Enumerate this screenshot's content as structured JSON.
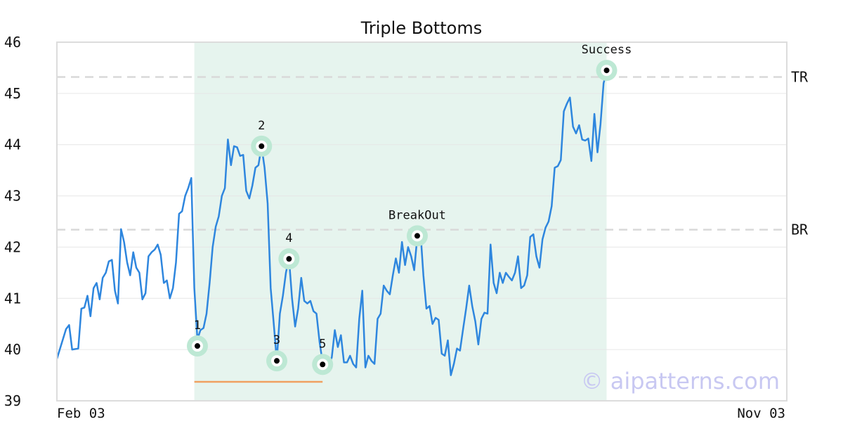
{
  "chart_data": {
    "type": "line",
    "title": "Triple Bottoms",
    "xlabel": "",
    "ylabel": "",
    "ylim": [
      39,
      46
    ],
    "yticks": [
      39,
      40,
      41,
      42,
      43,
      44,
      45,
      46
    ],
    "xtick_labels": [
      "Feb 03",
      "Nov 03"
    ],
    "grid": "horizontal",
    "n_points": 240,
    "series": [
      {
        "name": "",
        "color": "#2e86de",
        "keypoints": [
          [
            0,
            39.82
          ],
          [
            3,
            40.4
          ],
          [
            4,
            40.48
          ],
          [
            5,
            40
          ],
          [
            7,
            40.02
          ],
          [
            8,
            40.8
          ],
          [
            9,
            40.82
          ],
          [
            10,
            41.05
          ],
          [
            11,
            40.65
          ],
          [
            12,
            41.2
          ],
          [
            13,
            41.3
          ],
          [
            14,
            40.98
          ],
          [
            15,
            41.4
          ],
          [
            16,
            41.5
          ],
          [
            17,
            41.72
          ],
          [
            18,
            41.75
          ],
          [
            19,
            41.15
          ],
          [
            20,
            40.9
          ],
          [
            21,
            42.35
          ],
          [
            22,
            42.1
          ],
          [
            23,
            41.7
          ],
          [
            24,
            41.45
          ],
          [
            25,
            41.9
          ],
          [
            26,
            41.6
          ],
          [
            27,
            41.5
          ],
          [
            28,
            40.98
          ],
          [
            29,
            41.1
          ],
          [
            30,
            41.82
          ],
          [
            31,
            41.9
          ],
          [
            32,
            41.95
          ],
          [
            33,
            42.05
          ],
          [
            34,
            41.85
          ],
          [
            35,
            41.3
          ],
          [
            36,
            41.35
          ],
          [
            37,
            41
          ],
          [
            38,
            41.2
          ],
          [
            39,
            41.7
          ],
          [
            40,
            42.65
          ],
          [
            41,
            42.7
          ],
          [
            42,
            43
          ],
          [
            43,
            43.15
          ],
          [
            44,
            43.35
          ],
          [
            45,
            41.2
          ],
          [
            46,
            40.2
          ],
          [
            47,
            40.38
          ],
          [
            48,
            40.42
          ],
          [
            49,
            40.7
          ],
          [
            50,
            41.3
          ],
          [
            51,
            42
          ],
          [
            52,
            42.4
          ],
          [
            53,
            42.6
          ],
          [
            54,
            43
          ],
          [
            55,
            43.15
          ],
          [
            56,
            44.1
          ],
          [
            57,
            43.6
          ],
          [
            58,
            43.97
          ],
          [
            59,
            43.95
          ],
          [
            60,
            43.78
          ],
          [
            61,
            43.8
          ],
          [
            62,
            43.1
          ],
          [
            63,
            42.95
          ],
          [
            64,
            43.2
          ],
          [
            65,
            43.55
          ],
          [
            66,
            43.6
          ],
          [
            67,
            43.97
          ],
          [
            68,
            43.55
          ],
          [
            69,
            42.85
          ],
          [
            70,
            41.2
          ],
          [
            71,
            40.5
          ],
          [
            72,
            39.78
          ],
          [
            73,
            40.7
          ],
          [
            74,
            41.05
          ],
          [
            75,
            41.5
          ],
          [
            76,
            41.78
          ],
          [
            77,
            41
          ],
          [
            78,
            40.45
          ],
          [
            79,
            40.8
          ],
          [
            80,
            41.4
          ],
          [
            81,
            40.95
          ],
          [
            82,
            40.9
          ],
          [
            83,
            40.95
          ],
          [
            84,
            40.75
          ],
          [
            85,
            40.7
          ],
          [
            86,
            40.15
          ],
          [
            87,
            39.75
          ],
          [
            88,
            39.8
          ],
          [
            89,
            39.7
          ],
          [
            90,
            39.85
          ],
          [
            91,
            40.38
          ],
          [
            92,
            40.05
          ],
          [
            93,
            40.28
          ],
          [
            94,
            39.75
          ],
          [
            95,
            39.75
          ],
          [
            96,
            39.88
          ],
          [
            97,
            39.72
          ],
          [
            98,
            39.65
          ],
          [
            99,
            40.6
          ],
          [
            100,
            41.15
          ],
          [
            101,
            39.65
          ],
          [
            102,
            39.88
          ],
          [
            103,
            39.78
          ],
          [
            104,
            39.72
          ],
          [
            105,
            40.6
          ],
          [
            106,
            40.7
          ],
          [
            107,
            41.25
          ],
          [
            108,
            41.15
          ],
          [
            109,
            41.08
          ],
          [
            110,
            41.45
          ],
          [
            111,
            41.78
          ],
          [
            112,
            41.5
          ],
          [
            113,
            42.1
          ],
          [
            114,
            41.65
          ],
          [
            115,
            42
          ],
          [
            116,
            41.82
          ],
          [
            117,
            41.55
          ],
          [
            118,
            42.2
          ],
          [
            119,
            42.35
          ],
          [
            120,
            41.45
          ],
          [
            121,
            40.8
          ],
          [
            122,
            40.85
          ],
          [
            123,
            40.5
          ],
          [
            124,
            40.62
          ],
          [
            125,
            40.58
          ],
          [
            126,
            39.92
          ],
          [
            127,
            39.88
          ],
          [
            128,
            40.18
          ],
          [
            129,
            39.5
          ],
          [
            130,
            39.72
          ],
          [
            131,
            40.02
          ],
          [
            132,
            39.98
          ],
          [
            133,
            40.4
          ],
          [
            134,
            40.8
          ],
          [
            135,
            41.25
          ],
          [
            136,
            40.85
          ],
          [
            137,
            40.55
          ],
          [
            138,
            40.1
          ],
          [
            139,
            40.6
          ],
          [
            140,
            40.72
          ],
          [
            141,
            40.7
          ],
          [
            142,
            42.05
          ],
          [
            143,
            41.3
          ],
          [
            144,
            41.1
          ],
          [
            145,
            41.5
          ],
          [
            146,
            41.3
          ],
          [
            147,
            41.5
          ],
          [
            148,
            41.42
          ],
          [
            149,
            41.35
          ],
          [
            150,
            41.5
          ],
          [
            151,
            41.82
          ],
          [
            152,
            41.2
          ],
          [
            153,
            41.25
          ],
          [
            154,
            41.45
          ],
          [
            155,
            42.2
          ],
          [
            156,
            42.25
          ],
          [
            157,
            41.82
          ],
          [
            158,
            41.6
          ],
          [
            159,
            42.15
          ],
          [
            160,
            42.38
          ],
          [
            161,
            42.5
          ],
          [
            162,
            42.8
          ],
          [
            163,
            43.55
          ],
          [
            164,
            43.58
          ],
          [
            165,
            43.7
          ],
          [
            166,
            44.65
          ],
          [
            167,
            44.8
          ],
          [
            168,
            44.92
          ],
          [
            169,
            44.35
          ],
          [
            170,
            44.22
          ],
          [
            171,
            44.38
          ],
          [
            172,
            44.1
          ],
          [
            173,
            44.08
          ],
          [
            174,
            44.12
          ],
          [
            175,
            43.68
          ],
          [
            176,
            44.6
          ],
          [
            177,
            43.85
          ],
          [
            178,
            44.4
          ],
          [
            179,
            45.2
          ],
          [
            180,
            45.42
          ],
          [
            181,
            45.55
          ]
        ]
      }
    ],
    "highlight_range_x": [
      45,
      180
    ],
    "levels": [
      {
        "label": "TR",
        "y": 45.32
      },
      {
        "label": "BR",
        "y": 42.34
      }
    ],
    "annotations": [
      {
        "label": "1",
        "x": 46,
        "y": 40.07
      },
      {
        "label": "2",
        "x": 67,
        "y": 43.97
      },
      {
        "label": "3",
        "x": 72,
        "y": 39.78
      },
      {
        "label": "4",
        "x": 76,
        "y": 41.77
      },
      {
        "label": "5",
        "x": 87,
        "y": 39.71
      },
      {
        "label": "BreakOut",
        "x": 118,
        "y": 42.22
      },
      {
        "label": "Success",
        "x": 180,
        "y": 45.45
      }
    ],
    "support_segment": {
      "x": [
        45,
        87
      ],
      "y": 39.37,
      "color": "#f0a060"
    },
    "highlight_color": "#e6f4ee",
    "marker_halo_color": "#bde8d4",
    "level_line_color": "#d9d9d9"
  },
  "watermark": "© aipatterns.com"
}
